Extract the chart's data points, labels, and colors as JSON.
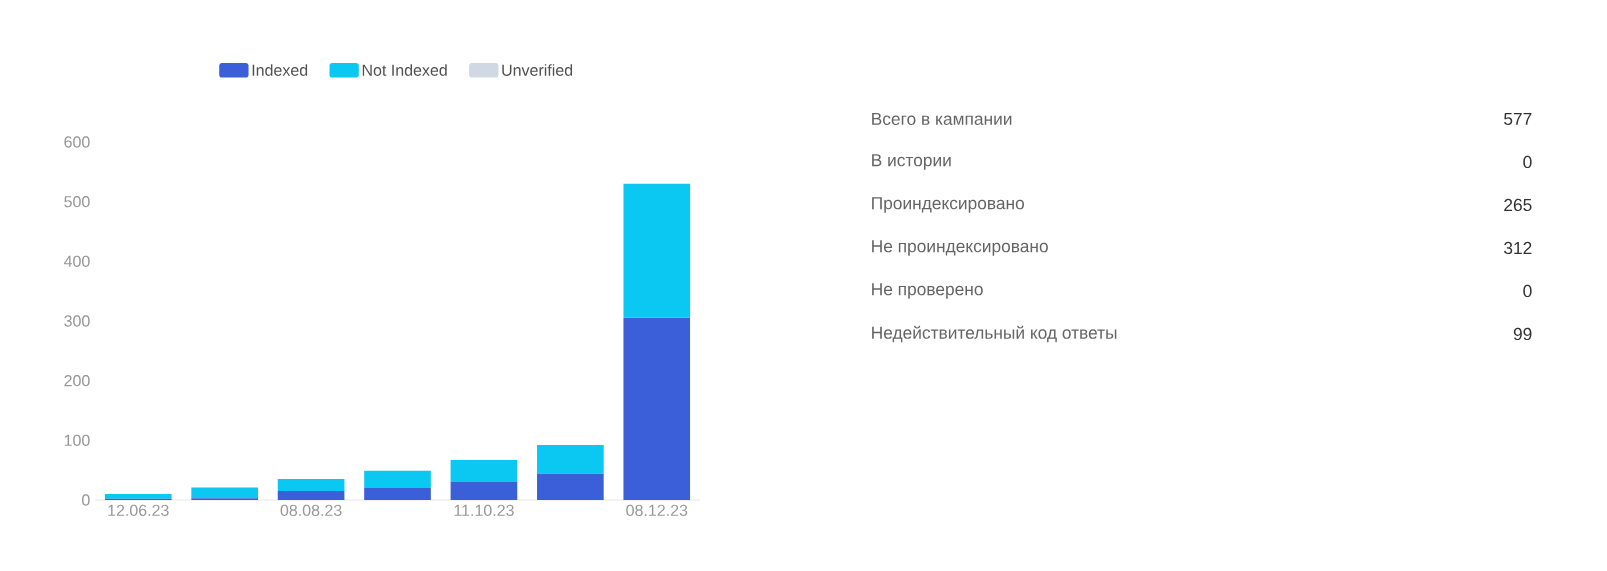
{
  "chart_data": [
    {
      "type": "bar",
      "stacked": true,
      "categories": [
        "12.06.23",
        null,
        "08.08.23",
        null,
        "11.10.23",
        null,
        "08.12.23"
      ],
      "series": [
        {
          "name": "Indexed",
          "color": "#3b5fd9",
          "values": [
            2,
            3,
            15,
            21,
            30,
            44,
            306
          ]
        },
        {
          "name": "Not Indexed",
          "color": "#0bc8f2",
          "values": [
            8,
            18,
            20,
            28,
            37,
            48,
            224
          ]
        },
        {
          "name": "Unverified",
          "color": "#d0d8e4",
          "values": [
            0,
            0,
            0,
            0,
            0,
            0,
            0
          ]
        }
      ],
      "ylim": [
        0,
        600
      ],
      "yticks": [
        0,
        100,
        200,
        300,
        400,
        500,
        600
      ],
      "grid": false,
      "legend": "top"
    },
    {
      "type": "other",
      "data_labels": true,
      "categories": [
        "Всего в кампании",
        "В истории",
        "Проиндексировано",
        "Не проиндексировано",
        "Не проверено",
        "Недействительный код ответы"
      ],
      "values": [
        577,
        0,
        265,
        312,
        0,
        99
      ]
    }
  ]
}
